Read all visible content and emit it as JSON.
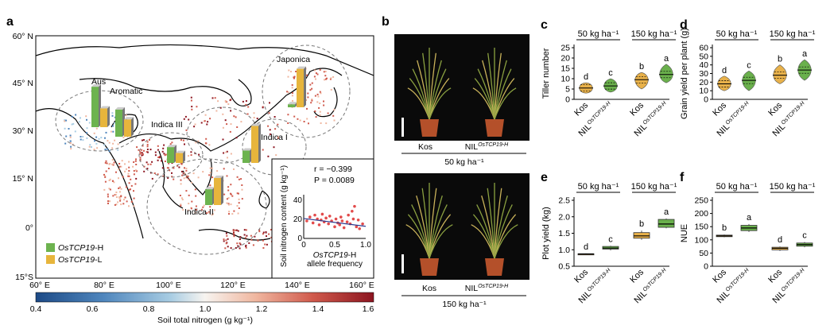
{
  "panels": {
    "a": {
      "label": "a",
      "lat_labels": [
        "60° N",
        "45° N",
        "30° N",
        "15° N",
        "0°",
        "15°S"
      ],
      "lon_labels": [
        "60° E",
        "80° E",
        "100° E",
        "120° E",
        "140° E",
        "160° E"
      ],
      "groups": [
        {
          "name": "Aus",
          "h": 0.82,
          "l": 0.38
        },
        {
          "name": "Aromatic",
          "h": 0.55,
          "l": 0.35
        },
        {
          "name": "Indica III",
          "h": 0.32,
          "l": 0.2
        },
        {
          "name": "Indica I",
          "h": 0.25,
          "l": 0.75
        },
        {
          "name": "Indica II",
          "h": 0.32,
          "l": 0.55
        },
        {
          "name": "Japonica",
          "h": 0.06,
          "l": 0.78
        }
      ],
      "legend": {
        "h_prefix": "OsTCP19",
        "h_suffix": "-H",
        "l_prefix": "OsTCP19",
        "l_suffix": "-L",
        "h_color": "#6db34f",
        "l_color": "#e7b53c"
      },
      "colorbar": {
        "ticks": [
          "0.4",
          "0.6",
          "0.8",
          "1.0",
          "1.2",
          "1.4",
          "1.6"
        ],
        "label": "Soil total nitrogen (g kg⁻¹)",
        "colors": [
          "#1d4a86",
          "#4f86bd",
          "#a9cde3",
          "#f7f4f0",
          "#f0b7a0",
          "#d05a4c",
          "#8c1520"
        ]
      },
      "inset": {
        "r": "r = −0.399",
        "p": "P = 0.0089",
        "ylabel": "Soil nitrogen content (g kg⁻¹)",
        "xlabel_italic": "OsTCP19",
        "xlabel_rest": "-H",
        "xlabel2": "allele frequency",
        "xticks": [
          "0",
          "0.5",
          "1.0"
        ],
        "yticks": [
          "0",
          "20",
          "40"
        ],
        "points": [
          [
            0.05,
            18
          ],
          [
            0.1,
            22
          ],
          [
            0.15,
            16
          ],
          [
            0.18,
            24
          ],
          [
            0.22,
            20
          ],
          [
            0.25,
            14
          ],
          [
            0.28,
            19
          ],
          [
            0.3,
            25
          ],
          [
            0.33,
            17
          ],
          [
            0.36,
            21
          ],
          [
            0.4,
            15
          ],
          [
            0.42,
            23
          ],
          [
            0.45,
            18
          ],
          [
            0.5,
            12
          ],
          [
            0.52,
            20
          ],
          [
            0.55,
            16
          ],
          [
            0.58,
            14
          ],
          [
            0.6,
            22
          ],
          [
            0.62,
            18
          ],
          [
            0.65,
            11
          ],
          [
            0.7,
            17
          ],
          [
            0.72,
            24
          ],
          [
            0.75,
            15
          ],
          [
            0.78,
            28
          ],
          [
            0.8,
            20
          ],
          [
            0.82,
            33
          ],
          [
            0.85,
            12
          ],
          [
            0.88,
            19
          ],
          [
            0.9,
            10
          ],
          [
            0.95,
            15
          ]
        ],
        "fit": [
          [
            0,
            20.5
          ],
          [
            1,
            12.5
          ]
        ]
      }
    },
    "b": {
      "label": "b",
      "kos": "Kos",
      "nil_base": "NIL",
      "nil_sup": "OsTCP19-H",
      "rate50": "50 kg ha⁻¹",
      "rate150": "150 kg ha⁻¹"
    },
    "c": {
      "label": "c",
      "ylabel": "Tiller number",
      "yticks": [
        "0",
        "5",
        "10",
        "15",
        "20",
        "25"
      ],
      "rate50": "50 kg ha⁻¹",
      "rate150": "150 kg ha⁻¹",
      "letters": [
        "d",
        "c",
        "b",
        "a"
      ],
      "xcat": [
        "Kos",
        "NIL",
        "Kos",
        "NIL"
      ],
      "sup": "OsTCP19-H"
    },
    "d": {
      "label": "d",
      "ylabel": "Grain yield per plant (g)",
      "yticks": [
        "0",
        "10",
        "20",
        "30",
        "40",
        "50",
        "60"
      ],
      "rate50": "50 kg ha⁻¹",
      "rate150": "150 kg ha⁻¹",
      "letters": [
        "d",
        "c",
        "b",
        "a"
      ],
      "xcat": [
        "Kos",
        "NIL",
        "Kos",
        "NIL"
      ],
      "sup": "OsTCP19-H"
    },
    "e": {
      "label": "e",
      "ylabel": "Plot yield (kg)",
      "yticks": [
        "0.5",
        "1.0",
        "1.5",
        "2.0",
        "2.5"
      ],
      "rate50": "50 kg ha⁻¹",
      "rate150": "150 kg ha⁻¹",
      "letters": [
        "d",
        "c",
        "b",
        "a"
      ],
      "xcat": [
        "Kos",
        "NIL",
        "Kos",
        "NIL"
      ],
      "sup": "OsTCP19-H"
    },
    "f": {
      "label": "f",
      "ylabel": "NUE",
      "yticks": [
        "0",
        "50",
        "100",
        "150",
        "200",
        "250"
      ],
      "rate50": "50 kg ha⁻¹",
      "rate150": "150 kg ha⁻¹",
      "letters": [
        "b",
        "a",
        "d",
        "c"
      ],
      "xcat": [
        "Kos",
        "NIL",
        "Kos",
        "NIL"
      ],
      "sup": "OsTCP19-H"
    }
  },
  "chart_data": [
    {
      "type": "violin",
      "ylabel": "Tiller number",
      "ylim": [
        0,
        25
      ],
      "categories": [
        "Kos 50 kg ha⁻¹",
        "NIL 50 kg ha⁻¹",
        "Kos 150 kg ha⁻¹",
        "NIL 150 kg ha⁻¹"
      ],
      "series": [
        {
          "values": [
            5.5,
            6.5,
            9.5,
            12
          ],
          "ranges": [
            [
              3,
              8
            ],
            [
              3.5,
              10
            ],
            [
              5,
              13
            ],
            [
              8,
              17
            ]
          ]
        }
      ],
      "letters": [
        "d",
        "c",
        "b",
        "a"
      ],
      "colors": [
        "#e8b14a",
        "#6ab04c",
        "#e8b14a",
        "#6ab04c"
      ]
    },
    {
      "type": "violin",
      "ylabel": "Grain yield per plant (g)",
      "ylim": [
        0,
        60
      ],
      "categories": [
        "Kos 50 kg ha⁻¹",
        "NIL 50 kg ha⁻¹",
        "Kos 150 kg ha⁻¹",
        "NIL 150 kg ha⁻¹"
      ],
      "series": [
        {
          "values": [
            18,
            22,
            28,
            34
          ],
          "ranges": [
            [
              10,
              27
            ],
            [
              10,
              33
            ],
            [
              18,
              40
            ],
            [
              22,
              46
            ]
          ]
        }
      ],
      "letters": [
        "d",
        "c",
        "b",
        "a"
      ],
      "colors": [
        "#e8b14a",
        "#6ab04c",
        "#e8b14a",
        "#6ab04c"
      ]
    },
    {
      "type": "box",
      "ylabel": "Plot yield (kg)",
      "ylim": [
        0.5,
        2.5
      ],
      "categories": [
        "Kos 50 kg ha⁻¹",
        "NIL 50 kg ha⁻¹",
        "Kos 150 kg ha⁻¹",
        "NIL 150 kg ha⁻¹"
      ],
      "series": [
        {
          "values": [
            0.87,
            1.05,
            1.42,
            1.78
          ],
          "q1": [
            0.86,
            1.02,
            1.35,
            1.68
          ],
          "q3": [
            0.88,
            1.1,
            1.52,
            1.92
          ],
          "min": [
            0.85,
            0.98,
            1.3,
            1.65
          ],
          "max": [
            0.89,
            1.12,
            1.58,
            1.95
          ]
        }
      ],
      "letters": [
        "d",
        "c",
        "b",
        "a"
      ],
      "colors": [
        "#e8b14a",
        "#6ab04c",
        "#e8b14a",
        "#6ab04c"
      ]
    },
    {
      "type": "box",
      "ylabel": "NUE",
      "ylim": [
        0,
        250
      ],
      "categories": [
        "Kos 50 kg ha⁻¹",
        "NIL 50 kg ha⁻¹",
        "Kos 150 kg ha⁻¹",
        "NIL 150 kg ha⁻¹"
      ],
      "series": [
        {
          "values": [
            115,
            145,
            68,
            82
          ],
          "q1": [
            112,
            135,
            62,
            76
          ],
          "q3": [
            118,
            155,
            72,
            88
          ],
          "min": [
            110,
            130,
            58,
            72
          ],
          "max": [
            120,
            160,
            75,
            92
          ]
        }
      ],
      "letters": [
        "b",
        "a",
        "d",
        "c"
      ],
      "colors": [
        "#e8b14a",
        "#6ab04c",
        "#e8b14a",
        "#6ab04c"
      ]
    }
  ]
}
